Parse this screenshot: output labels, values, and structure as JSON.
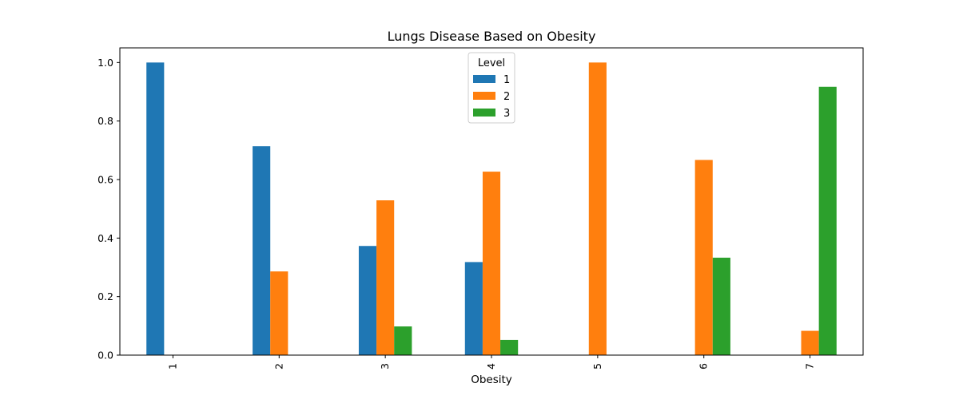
{
  "chart_data": {
    "type": "bar",
    "title": "Lungs Disease Based on Obesity",
    "xlabel": "Obesity",
    "ylabel": "",
    "categories": [
      "1",
      "2",
      "3",
      "4",
      "5",
      "6",
      "7"
    ],
    "series": [
      {
        "name": "1",
        "color": "#1f77b4",
        "values": [
          1.0,
          0.714,
          0.373,
          0.318,
          0,
          0,
          0
        ]
      },
      {
        "name": "2",
        "color": "#ff7f0e",
        "values": [
          0,
          0.286,
          0.529,
          0.627,
          1.0,
          0.667,
          0.083
        ]
      },
      {
        "name": "3",
        "color": "#2ca02c",
        "values": [
          0,
          0,
          0.098,
          0.052,
          0,
          0.333,
          0.917
        ]
      }
    ],
    "ylim": [
      0,
      1.05
    ],
    "yticks": [
      "0.0",
      "0.2",
      "0.4",
      "0.6",
      "0.8",
      "1.0"
    ],
    "legend": {
      "title": "Level",
      "position": "upper-center"
    },
    "grid": false
  }
}
